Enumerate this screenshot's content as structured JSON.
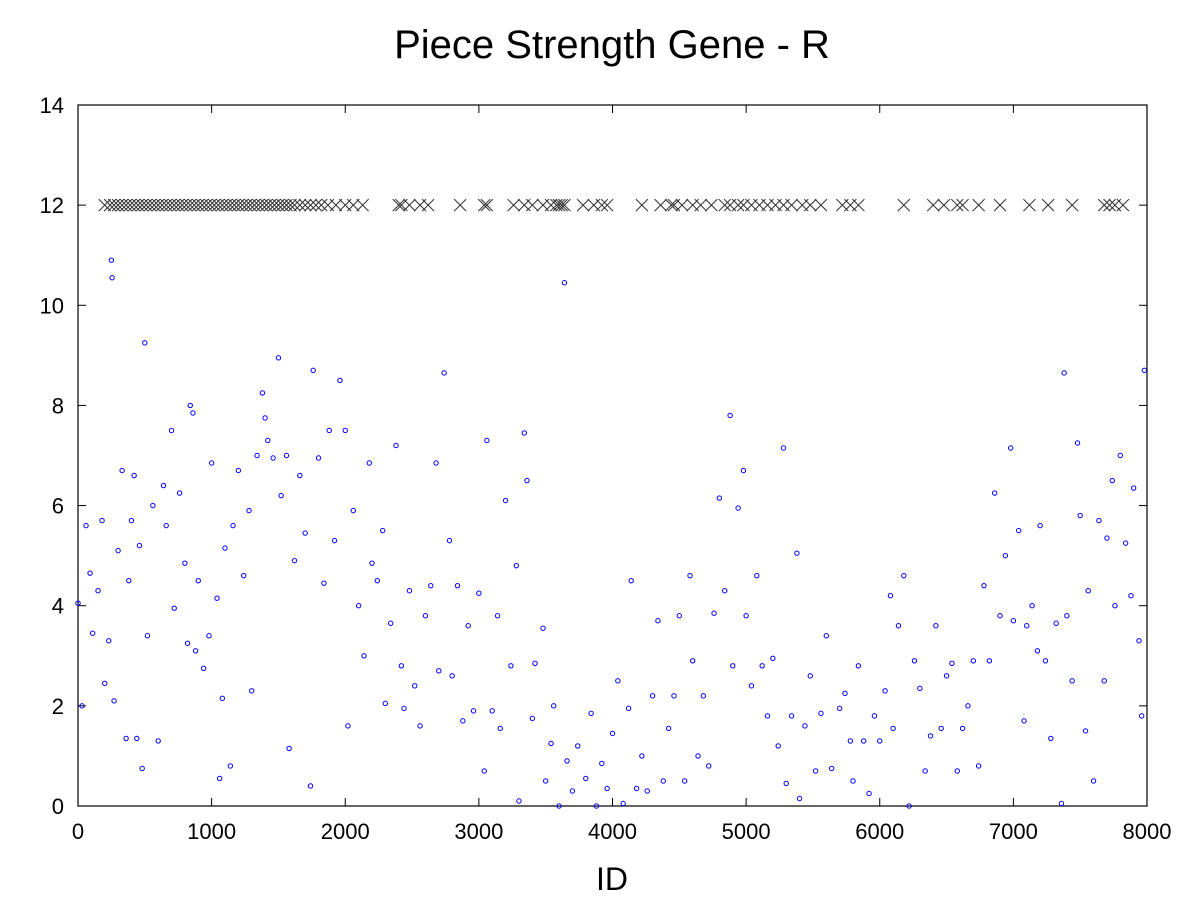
{
  "chart_data": {
    "type": "scatter",
    "title": "Piece Strength Gene - R",
    "xlabel": "ID",
    "ylabel": "",
    "xlim": [
      0,
      8000
    ],
    "ylim": [
      0,
      14
    ],
    "xticks": [
      "0",
      "1000",
      "2000",
      "3000",
      "4000",
      "5000",
      "6000",
      "7000",
      "8000"
    ],
    "yticks": [
      "0",
      "2",
      "4",
      "6",
      "8",
      "10",
      "12",
      "14"
    ],
    "grid": false,
    "legend": "none",
    "series": [
      {
        "marker": "circle",
        "color": "#0000ff",
        "points": [
          [
            0,
            4.05
          ],
          [
            30,
            2.0
          ],
          [
            60,
            5.6
          ],
          [
            90,
            4.65
          ],
          [
            110,
            3.45
          ],
          [
            150,
            4.3
          ],
          [
            180,
            5.7
          ],
          [
            200,
            2.45
          ],
          [
            230,
            3.3
          ],
          [
            250,
            10.9
          ],
          [
            255,
            10.55
          ],
          [
            270,
            2.1
          ],
          [
            300,
            5.1
          ],
          [
            330,
            6.7
          ],
          [
            360,
            1.35
          ],
          [
            380,
            4.5
          ],
          [
            400,
            5.7
          ],
          [
            420,
            6.6
          ],
          [
            440,
            1.35
          ],
          [
            460,
            5.2
          ],
          [
            480,
            0.75
          ],
          [
            500,
            9.25
          ],
          [
            520,
            3.4
          ],
          [
            560,
            6.0
          ],
          [
            600,
            1.3
          ],
          [
            640,
            6.4
          ],
          [
            660,
            5.6
          ],
          [
            700,
            7.5
          ],
          [
            720,
            3.95
          ],
          [
            760,
            6.25
          ],
          [
            800,
            4.85
          ],
          [
            820,
            3.25
          ],
          [
            840,
            8.0
          ],
          [
            860,
            7.85
          ],
          [
            880,
            3.1
          ],
          [
            900,
            4.5
          ],
          [
            940,
            2.75
          ],
          [
            980,
            3.4
          ],
          [
            1000,
            6.85
          ],
          [
            1040,
            4.15
          ],
          [
            1060,
            0.55
          ],
          [
            1080,
            2.15
          ],
          [
            1100,
            5.15
          ],
          [
            1140,
            0.8
          ],
          [
            1160,
            5.6
          ],
          [
            1200,
            6.7
          ],
          [
            1240,
            4.6
          ],
          [
            1280,
            5.9
          ],
          [
            1300,
            2.3
          ],
          [
            1340,
            7.0
          ],
          [
            1380,
            8.25
          ],
          [
            1400,
            7.75
          ],
          [
            1420,
            7.3
          ],
          [
            1460,
            6.95
          ],
          [
            1500,
            8.95
          ],
          [
            1520,
            6.2
          ],
          [
            1560,
            7.0
          ],
          [
            1580,
            1.15
          ],
          [
            1620,
            4.9
          ],
          [
            1660,
            6.6
          ],
          [
            1700,
            5.45
          ],
          [
            1740,
            0.4
          ],
          [
            1760,
            8.7
          ],
          [
            1800,
            6.95
          ],
          [
            1840,
            4.45
          ],
          [
            1880,
            7.5
          ],
          [
            1920,
            5.3
          ],
          [
            1960,
            8.5
          ],
          [
            2000,
            7.5
          ],
          [
            2020,
            1.6
          ],
          [
            2060,
            5.9
          ],
          [
            2100,
            4.0
          ],
          [
            2140,
            3.0
          ],
          [
            2180,
            6.85
          ],
          [
            2200,
            4.85
          ],
          [
            2240,
            4.5
          ],
          [
            2280,
            5.5
          ],
          [
            2300,
            2.05
          ],
          [
            2340,
            3.65
          ],
          [
            2380,
            7.2
          ],
          [
            2420,
            2.8
          ],
          [
            2440,
            1.95
          ],
          [
            2480,
            4.3
          ],
          [
            2520,
            2.4
          ],
          [
            2560,
            1.6
          ],
          [
            2600,
            3.8
          ],
          [
            2640,
            4.4
          ],
          [
            2680,
            6.85
          ],
          [
            2700,
            2.7
          ],
          [
            2740,
            8.65
          ],
          [
            2780,
            5.3
          ],
          [
            2800,
            2.6
          ],
          [
            2840,
            4.4
          ],
          [
            2880,
            1.7
          ],
          [
            2920,
            3.6
          ],
          [
            2960,
            1.9
          ],
          [
            3000,
            4.25
          ],
          [
            3040,
            0.7
          ],
          [
            3060,
            7.3
          ],
          [
            3100,
            1.9
          ],
          [
            3140,
            3.8
          ],
          [
            3160,
            1.55
          ],
          [
            3200,
            6.1
          ],
          [
            3240,
            2.8
          ],
          [
            3280,
            4.8
          ],
          [
            3300,
            0.1
          ],
          [
            3340,
            7.45
          ],
          [
            3360,
            6.5
          ],
          [
            3400,
            1.75
          ],
          [
            3420,
            2.85
          ],
          [
            3480,
            3.55
          ],
          [
            3500,
            0.5
          ],
          [
            3540,
            1.25
          ],
          [
            3560,
            2.0
          ],
          [
            3600,
            0.0
          ],
          [
            3640,
            10.45
          ],
          [
            3660,
            0.9
          ],
          [
            3700,
            0.3
          ],
          [
            3740,
            1.2
          ],
          [
            3800,
            0.55
          ],
          [
            3840,
            1.85
          ],
          [
            3880,
            0.0
          ],
          [
            3920,
            0.85
          ],
          [
            3960,
            0.35
          ],
          [
            4000,
            1.45
          ],
          [
            4040,
            2.5
          ],
          [
            4080,
            0.05
          ],
          [
            4120,
            1.95
          ],
          [
            4140,
            4.5
          ],
          [
            4180,
            0.35
          ],
          [
            4220,
            1.0
          ],
          [
            4260,
            0.3
          ],
          [
            4300,
            2.2
          ],
          [
            4340,
            3.7
          ],
          [
            4380,
            0.5
          ],
          [
            4420,
            1.55
          ],
          [
            4460,
            2.2
          ],
          [
            4500,
            3.8
          ],
          [
            4540,
            0.5
          ],
          [
            4580,
            4.6
          ],
          [
            4600,
            2.9
          ],
          [
            4640,
            1.0
          ],
          [
            4680,
            2.2
          ],
          [
            4720,
            0.8
          ],
          [
            4760,
            3.85
          ],
          [
            4800,
            6.15
          ],
          [
            4840,
            4.3
          ],
          [
            4880,
            7.8
          ],
          [
            4900,
            2.8
          ],
          [
            4940,
            5.95
          ],
          [
            4980,
            6.7
          ],
          [
            5000,
            3.8
          ],
          [
            5040,
            2.4
          ],
          [
            5080,
            4.6
          ],
          [
            5120,
            2.8
          ],
          [
            5160,
            1.8
          ],
          [
            5200,
            2.95
          ],
          [
            5240,
            1.2
          ],
          [
            5280,
            7.15
          ],
          [
            5300,
            0.45
          ],
          [
            5340,
            1.8
          ],
          [
            5380,
            5.05
          ],
          [
            5400,
            0.15
          ],
          [
            5440,
            1.6
          ],
          [
            5480,
            2.6
          ],
          [
            5520,
            0.7
          ],
          [
            5560,
            1.85
          ],
          [
            5600,
            3.4
          ],
          [
            5640,
            0.75
          ],
          [
            5700,
            1.95
          ],
          [
            5740,
            2.25
          ],
          [
            5780,
            1.3
          ],
          [
            5800,
            0.5
          ],
          [
            5840,
            2.8
          ],
          [
            5880,
            1.3
          ],
          [
            5920,
            0.25
          ],
          [
            5960,
            1.8
          ],
          [
            6000,
            1.3
          ],
          [
            6040,
            2.3
          ],
          [
            6080,
            4.2
          ],
          [
            6100,
            1.55
          ],
          [
            6140,
            3.6
          ],
          [
            6180,
            4.6
          ],
          [
            6220,
            0.0
          ],
          [
            6260,
            2.9
          ],
          [
            6300,
            2.35
          ],
          [
            6340,
            0.7
          ],
          [
            6380,
            1.4
          ],
          [
            6420,
            3.6
          ],
          [
            6460,
            1.55
          ],
          [
            6500,
            2.6
          ],
          [
            6540,
            2.85
          ],
          [
            6580,
            0.7
          ],
          [
            6620,
            1.55
          ],
          [
            6660,
            2.0
          ],
          [
            6700,
            2.9
          ],
          [
            6740,
            0.8
          ],
          [
            6780,
            4.4
          ],
          [
            6820,
            2.9
          ],
          [
            6860,
            6.25
          ],
          [
            6900,
            3.8
          ],
          [
            6940,
            5.0
          ],
          [
            6980,
            7.15
          ],
          [
            7000,
            3.7
          ],
          [
            7040,
            5.5
          ],
          [
            7080,
            1.7
          ],
          [
            7100,
            3.6
          ],
          [
            7140,
            4.0
          ],
          [
            7180,
            3.1
          ],
          [
            7200,
            5.6
          ],
          [
            7240,
            2.9
          ],
          [
            7280,
            1.35
          ],
          [
            7320,
            3.65
          ],
          [
            7360,
            0.05
          ],
          [
            7380,
            8.65
          ],
          [
            7400,
            3.8
          ],
          [
            7440,
            2.5
          ],
          [
            7480,
            7.25
          ],
          [
            7500,
            5.8
          ],
          [
            7540,
            1.5
          ],
          [
            7560,
            4.3
          ],
          [
            7600,
            0.5
          ],
          [
            7640,
            5.7
          ],
          [
            7680,
            2.5
          ],
          [
            7700,
            5.35
          ],
          [
            7740,
            6.5
          ],
          [
            7760,
            4.0
          ],
          [
            7800,
            7.0
          ],
          [
            7840,
            5.25
          ],
          [
            7880,
            4.2
          ],
          [
            7900,
            6.35
          ],
          [
            7940,
            3.3
          ],
          [
            7960,
            1.8
          ],
          [
            7980,
            8.7
          ]
        ]
      },
      {
        "marker": "x",
        "color": "#333333",
        "x": [
          200,
          240,
          270,
          300,
          330,
          360,
          390,
          420,
          450,
          480,
          510,
          540,
          570,
          600,
          630,
          660,
          690,
          720,
          750,
          780,
          810,
          840,
          870,
          900,
          930,
          960,
          990,
          1020,
          1050,
          1080,
          1110,
          1140,
          1170,
          1200,
          1230,
          1260,
          1290,
          1320,
          1350,
          1380,
          1410,
          1440,
          1470,
          1500,
          1530,
          1560,
          1590,
          1620,
          1660,
          1700,
          1740,
          1780,
          1820,
          1870,
          1930,
          2000,
          2060,
          2130,
          2400,
          2420,
          2480,
          2560,
          2620,
          2860,
          3040,
          3060,
          3260,
          3340,
          3400,
          3480,
          3540,
          3580,
          3600,
          3620,
          3640,
          3780,
          3860,
          3920,
          3960,
          4220,
          4360,
          4440,
          4460,
          4520,
          4600,
          4660,
          4740,
          4840,
          4880,
          4940,
          4980,
          5040,
          5100,
          5160,
          5220,
          5280,
          5340,
          5420,
          5480,
          5560,
          5720,
          5780,
          5840,
          6180,
          6400,
          6480,
          6580,
          6620,
          6740,
          6900,
          7120,
          7260,
          7440,
          7680,
          7720,
          7760,
          7820
        ],
        "y": 12
      }
    ]
  }
}
